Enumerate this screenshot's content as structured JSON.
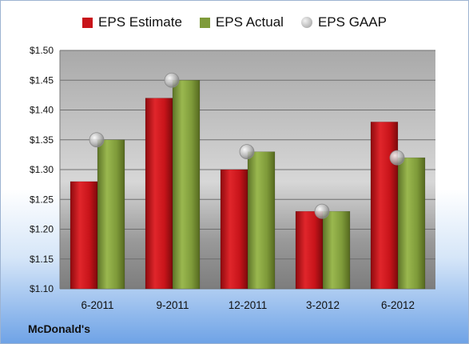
{
  "chart_data": {
    "type": "bar",
    "categories": [
      "6-2011",
      "9-2011",
      "12-2011",
      "3-2012",
      "6-2012"
    ],
    "series": [
      {
        "name": "EPS Estimate",
        "values": [
          1.28,
          1.42,
          1.3,
          1.23,
          1.38
        ],
        "color": "#c8141a"
      },
      {
        "name": "EPS Actual",
        "values": [
          1.35,
          1.45,
          1.33,
          1.23,
          1.32
        ],
        "color": "#7f9b3a"
      }
    ],
    "markers": [
      {
        "name": "EPS GAAP",
        "values": [
          1.35,
          1.45,
          1.33,
          1.23,
          1.32
        ],
        "color": "#a8a8a8"
      }
    ],
    "ylim": [
      1.1,
      1.5
    ],
    "yticks": [
      "$1.50",
      "$1.45",
      "$1.40",
      "$1.35",
      "$1.30",
      "$1.25",
      "$1.20",
      "$1.15",
      "$1.10"
    ],
    "ytick_values": [
      1.5,
      1.45,
      1.4,
      1.35,
      1.3,
      1.25,
      1.2,
      1.15,
      1.1
    ],
    "grid": true,
    "legend_position": "top"
  },
  "legend": {
    "estimate": "EPS Estimate",
    "actual": "EPS Actual",
    "gaap": "EPS GAAP"
  },
  "company": "McDonald's"
}
